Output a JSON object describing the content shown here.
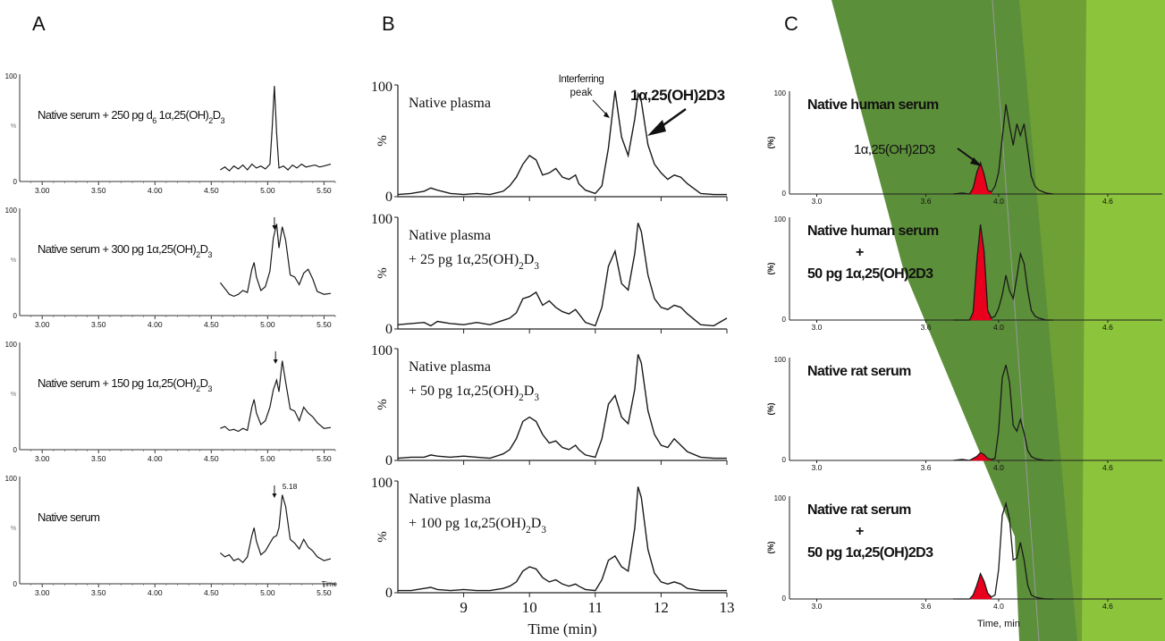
{
  "panel_labels": {
    "a": "A",
    "b": "B",
    "c": "C"
  },
  "colors": {
    "trace": "#1a1a1a",
    "highlight": "#e8001c",
    "green_dark": "#5c8f3a",
    "green_mid": "#6fa035",
    "green_light": "#8cc43c",
    "green_pale": "#d9ebc4"
  },
  "chart_data": [
    {
      "panel": "A",
      "type": "line",
      "xlim": [
        2.8,
        5.6
      ],
      "xticks": [
        "3.00",
        "3.50",
        "4.00",
        "4.50",
        "5.00",
        "5.50"
      ],
      "xlabel": "Time",
      "ytick_top": "100",
      "ytick_bottom": "0",
      "subplots": [
        {
          "label_parts": [
            "Native serum + 250 pg d",
            "6",
            " 1α,25(OH)",
            "2",
            "D",
            "3"
          ],
          "x": [
            4.58,
            4.62,
            4.66,
            4.7,
            4.74,
            4.78,
            4.82,
            4.86,
            4.9,
            4.94,
            4.98,
            5.02,
            5.04,
            5.06,
            5.08,
            5.1,
            5.14,
            5.18,
            5.22,
            5.26,
            5.3,
            5.34,
            5.38,
            5.42,
            5.46,
            5.5,
            5.56
          ],
          "y": [
            12,
            15,
            11,
            16,
            13,
            17,
            12,
            18,
            14,
            16,
            13,
            18,
            55,
            99,
            50,
            14,
            16,
            12,
            17,
            14,
            18,
            15,
            16,
            17,
            15,
            16,
            18
          ],
          "arrow_at": null,
          "peak_label": null
        },
        {
          "label_parts": [
            "Native serum + 300 pg 1α,25(OH)",
            "2",
            "D",
            "3"
          ],
          "x": [
            4.58,
            4.62,
            4.66,
            4.7,
            4.74,
            4.78,
            4.82,
            4.86,
            4.88,
            4.9,
            4.94,
            4.98,
            5.02,
            5.05,
            5.08,
            5.1,
            5.13,
            5.16,
            5.2,
            5.24,
            5.28,
            5.32,
            5.36,
            5.4,
            5.44,
            5.5,
            5.56
          ],
          "y": [
            34,
            28,
            22,
            20,
            22,
            26,
            24,
            48,
            55,
            40,
            26,
            30,
            46,
            80,
            95,
            70,
            92,
            78,
            42,
            40,
            32,
            44,
            48,
            38,
            25,
            22,
            23
          ],
          "arrow_at": 5.06,
          "peak_label": null
        },
        {
          "label_parts": [
            "Native serum + 150 pg 1α,25(OH)",
            "2",
            "D",
            "3"
          ],
          "x": [
            4.58,
            4.62,
            4.66,
            4.7,
            4.74,
            4.78,
            4.82,
            4.86,
            4.88,
            4.9,
            4.94,
            4.98,
            5.02,
            5.05,
            5.08,
            5.1,
            5.13,
            5.16,
            5.2,
            5.24,
            5.28,
            5.32,
            5.36,
            5.4,
            5.44,
            5.5,
            5.56
          ],
          "y": [
            22,
            24,
            20,
            21,
            19,
            22,
            20,
            44,
            52,
            38,
            26,
            30,
            44,
            62,
            72,
            60,
            92,
            70,
            42,
            40,
            30,
            44,
            38,
            34,
            28,
            22,
            23
          ],
          "arrow_at": 5.07,
          "peak_label": null
        },
        {
          "label_parts": [
            "Native serum"
          ],
          "x": [
            4.58,
            4.62,
            4.66,
            4.7,
            4.74,
            4.78,
            4.82,
            4.86,
            4.88,
            4.9,
            4.94,
            4.98,
            5.02,
            5.05,
            5.08,
            5.1,
            5.13,
            5.16,
            5.2,
            5.24,
            5.28,
            5.32,
            5.36,
            5.4,
            5.44,
            5.5,
            5.56
          ],
          "y": [
            32,
            28,
            30,
            24,
            26,
            22,
            28,
            50,
            58,
            44,
            30,
            34,
            42,
            48,
            50,
            58,
            92,
            80,
            46,
            42,
            36,
            46,
            38,
            34,
            28,
            24,
            26
          ],
          "arrow_at": 5.06,
          "peak_label": "5.18"
        }
      ]
    },
    {
      "panel": "B",
      "type": "line",
      "xlim": [
        8.0,
        13.0
      ],
      "xticks": [
        "9",
        "10",
        "11",
        "12",
        "13"
      ],
      "xlabel": "Time (min)",
      "yticks": [
        "100",
        "0"
      ],
      "ylabel": "%",
      "subplots": [
        {
          "label_lines": [
            [
              "Native plasma"
            ]
          ],
          "annotation_interferring": [
            "Interferring",
            "peak"
          ],
          "annotation_compound": "1α,25(OH)2D3",
          "x": [
            8.0,
            8.2,
            8.4,
            8.5,
            8.6,
            8.8,
            9.0,
            9.2,
            9.4,
            9.6,
            9.7,
            9.8,
            9.9,
            10.0,
            10.1,
            10.2,
            10.3,
            10.4,
            10.5,
            10.6,
            10.7,
            10.75,
            10.85,
            11.0,
            11.1,
            11.2,
            11.3,
            11.4,
            11.5,
            11.6,
            11.65,
            11.7,
            11.8,
            11.9,
            12.0,
            12.1,
            12.2,
            12.3,
            12.4,
            12.6,
            12.8,
            13.0
          ],
          "y": [
            2,
            3,
            5,
            8,
            6,
            3,
            2,
            3,
            2,
            5,
            10,
            18,
            30,
            38,
            34,
            20,
            22,
            26,
            18,
            16,
            20,
            12,
            6,
            3,
            10,
            45,
            98,
            55,
            38,
            72,
            95,
            88,
            48,
            30,
            22,
            16,
            20,
            18,
            12,
            3,
            2,
            2
          ]
        },
        {
          "label_lines": [
            [
              "Native plasma"
            ],
            [
              "+ 25 pg 1α,25(OH)",
              "2",
              "D",
              "3"
            ]
          ],
          "x": [
            8.0,
            8.2,
            8.4,
            8.5,
            8.6,
            8.8,
            9.0,
            9.2,
            9.4,
            9.6,
            9.7,
            9.8,
            9.9,
            10.0,
            10.1,
            10.2,
            10.3,
            10.4,
            10.5,
            10.6,
            10.7,
            10.75,
            10.85,
            11.0,
            11.1,
            11.2,
            11.3,
            11.4,
            11.5,
            11.6,
            11.65,
            11.7,
            11.8,
            11.9,
            12.0,
            12.1,
            12.2,
            12.3,
            12.4,
            12.6,
            12.8,
            13.0
          ],
          "y": [
            4,
            5,
            6,
            3,
            7,
            5,
            4,
            6,
            4,
            8,
            10,
            15,
            28,
            30,
            34,
            22,
            26,
            20,
            16,
            14,
            18,
            14,
            6,
            3,
            20,
            58,
            72,
            42,
            36,
            70,
            98,
            90,
            50,
            28,
            20,
            18,
            22,
            20,
            14,
            4,
            3,
            10
          ]
        },
        {
          "label_lines": [
            [
              "Native plasma"
            ],
            [
              "+ 50 pg 1α,25(OH)",
              "2",
              "D",
              "3"
            ]
          ],
          "x": [
            8.0,
            8.2,
            8.4,
            8.5,
            8.6,
            8.8,
            9.0,
            9.2,
            9.4,
            9.6,
            9.7,
            9.8,
            9.9,
            10.0,
            10.1,
            10.2,
            10.3,
            10.4,
            10.5,
            10.6,
            10.7,
            10.75,
            10.85,
            11.0,
            11.1,
            11.2,
            11.3,
            11.4,
            11.5,
            11.6,
            11.65,
            11.7,
            11.8,
            11.9,
            12.0,
            12.1,
            12.2,
            12.3,
            12.4,
            12.6,
            12.8,
            13.0
          ],
          "y": [
            2,
            3,
            3,
            5,
            4,
            3,
            4,
            3,
            2,
            6,
            10,
            20,
            36,
            40,
            36,
            24,
            16,
            18,
            12,
            10,
            14,
            10,
            5,
            3,
            20,
            52,
            60,
            40,
            34,
            66,
            98,
            90,
            46,
            24,
            14,
            12,
            20,
            14,
            8,
            3,
            2,
            2
          ]
        },
        {
          "label_lines": [
            [
              "Native plasma"
            ],
            [
              "+ 100 pg 1α,25(OH)",
              "2",
              "D",
              "3"
            ]
          ],
          "x": [
            8.0,
            8.2,
            8.4,
            8.5,
            8.6,
            8.8,
            9.0,
            9.2,
            9.4,
            9.6,
            9.7,
            9.8,
            9.9,
            10.0,
            10.1,
            10.2,
            10.3,
            10.4,
            10.5,
            10.6,
            10.7,
            10.75,
            10.85,
            11.0,
            11.1,
            11.2,
            11.3,
            11.4,
            11.5,
            11.6,
            11.65,
            11.7,
            11.8,
            11.9,
            12.0,
            12.1,
            12.2,
            12.3,
            12.4,
            12.6,
            12.8,
            13.0
          ],
          "y": [
            2,
            2,
            4,
            5,
            3,
            2,
            3,
            2,
            2,
            4,
            6,
            10,
            20,
            24,
            22,
            14,
            10,
            12,
            8,
            6,
            8,
            6,
            3,
            2,
            12,
            30,
            34,
            24,
            20,
            60,
            98,
            88,
            40,
            18,
            10,
            8,
            10,
            8,
            4,
            2,
            2,
            2
          ]
        }
      ]
    },
    {
      "panel": "C",
      "type": "line",
      "xlim": [
        2.85,
        4.9
      ],
      "xticks": [
        "3.0",
        "3.6",
        "4.0",
        "4.6"
      ],
      "xlabel": "Time, min",
      "yticks": [
        "100",
        "0"
      ],
      "ylabel": "(%)",
      "subplots": [
        {
          "label_lines": [
            "Native human serum"
          ],
          "annotation_compound": "1α,25(OH)2D3",
          "x": [
            3.75,
            3.8,
            3.84,
            3.86,
            3.88,
            3.9,
            3.92,
            3.94,
            3.96,
            3.98,
            4.0,
            4.02,
            4.04,
            4.06,
            4.08,
            4.1,
            4.12,
            4.14,
            4.16,
            4.18,
            4.2,
            4.22,
            4.26,
            4.3
          ],
          "y": [
            0,
            1,
            0,
            6,
            22,
            32,
            20,
            4,
            2,
            8,
            22,
            58,
            92,
            70,
            50,
            72,
            60,
            72,
            45,
            18,
            8,
            4,
            1,
            0
          ],
          "highlight_peak": 32
        },
        {
          "label_lines": [
            "Native human serum",
            "+",
            "50 pg 1α,25(OH)2D3"
          ],
          "x": [
            3.75,
            3.8,
            3.84,
            3.86,
            3.88,
            3.9,
            3.92,
            3.94,
            3.96,
            3.98,
            4.0,
            4.02,
            4.04,
            4.06,
            4.08,
            4.1,
            4.12,
            4.14,
            4.16,
            4.18,
            4.2,
            4.22,
            4.26,
            4.3
          ],
          "y": [
            0,
            0,
            0,
            8,
            60,
            98,
            70,
            10,
            2,
            4,
            12,
            26,
            46,
            30,
            22,
            44,
            68,
            58,
            30,
            10,
            4,
            2,
            0,
            0
          ],
          "highlight_peak": 98
        },
        {
          "label_lines": [
            "Native rat serum"
          ],
          "x": [
            3.75,
            3.8,
            3.84,
            3.86,
            3.88,
            3.9,
            3.92,
            3.94,
            3.96,
            3.98,
            4.0,
            4.02,
            4.04,
            4.06,
            4.08,
            4.1,
            4.12,
            4.14,
            4.16,
            4.18,
            4.2,
            4.22,
            4.26,
            4.3
          ],
          "y": [
            0,
            1,
            0,
            2,
            4,
            8,
            6,
            2,
            1,
            2,
            30,
            85,
            98,
            80,
            36,
            30,
            42,
            28,
            10,
            4,
            2,
            1,
            0,
            0
          ],
          "highlight_peak": 8
        },
        {
          "label_lines": [
            "Native rat serum",
            "+",
            "50 pg 1α,25(OH)2D3"
          ],
          "x": [
            3.75,
            3.8,
            3.84,
            3.86,
            3.88,
            3.9,
            3.92,
            3.94,
            3.96,
            3.98,
            4.0,
            4.02,
            4.04,
            4.06,
            4.08,
            4.1,
            4.12,
            4.14,
            4.16,
            4.18,
            4.2,
            4.22,
            4.26,
            4.3
          ],
          "y": [
            0,
            0,
            0,
            4,
            14,
            26,
            18,
            6,
            2,
            4,
            30,
            86,
            98,
            82,
            40,
            42,
            58,
            40,
            14,
            4,
            2,
            1,
            0,
            0
          ],
          "highlight_peak": 26
        }
      ]
    }
  ]
}
